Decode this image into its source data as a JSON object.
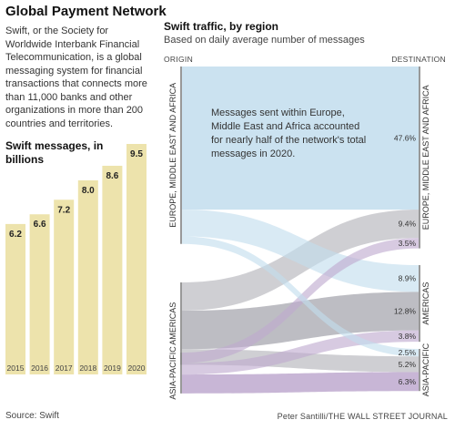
{
  "left": {
    "title": "Global Payment Network",
    "description": "Swift, or the Society for Worldwide Interbank Financial Telecommunication, is a global messaging system for financial transactions that connects more than 11,000 banks and other organizations in more than 200 countries and territories.",
    "source": "Source: Swift"
  },
  "right": {
    "title": "Swift traffic, by region",
    "subtitle": "Based on daily average number of messages",
    "annotation": "Messages sent within Europe, Middle East and Africa accounted for nearly half of the network's total messages in 2020.",
    "credit": "Peter Santilli/THE WALL STREET JOURNAL"
  },
  "colors": {
    "bar": "#ede3ac",
    "emea": "#c2dded",
    "americas": "#b1b2b8",
    "asia": "#bea9cf",
    "node": "#555555"
  },
  "chart_data": [
    {
      "type": "bar",
      "title": "Swift messages, in billions",
      "categories": [
        "2015",
        "2016",
        "2017",
        "2018",
        "2019",
        "2020"
      ],
      "values": [
        6.2,
        6.6,
        7.2,
        8.0,
        8.6,
        9.5
      ],
      "value_labels": [
        "6.2",
        "6.6",
        "7.2",
        "8.0",
        "8.6",
        "9.5"
      ],
      "ylim": [
        0,
        9.5
      ]
    },
    {
      "type": "sankey",
      "title": "Swift traffic, by region",
      "subtitle": "Based on daily average number of messages",
      "origin_header": "ORIGIN",
      "destination_header": "DESTINATION",
      "origins": [
        "EUROPE, MIDDLE EAST AND AFRICA",
        "AMERICAS",
        "ASIA-PACIFIC"
      ],
      "destinations": [
        "EUROPE, MIDDLE EAST AND AFRICA",
        "AMERICAS",
        "ASIA-PACIFIC"
      ],
      "flows": [
        {
          "from": "EUROPE, MIDDLE EAST AND AFRICA",
          "to": "EUROPE, MIDDLE EAST AND AFRICA",
          "percent": 47.6,
          "label": "47.6%"
        },
        {
          "from": "EUROPE, MIDDLE EAST AND AFRICA",
          "to": "AMERICAS",
          "percent": 8.9,
          "label": "8.9%"
        },
        {
          "from": "EUROPE, MIDDLE EAST AND AFRICA",
          "to": "ASIA-PACIFIC",
          "percent": 2.5,
          "label": "2.5%"
        },
        {
          "from": "AMERICAS",
          "to": "EUROPE, MIDDLE EAST AND AFRICA",
          "percent": 9.4,
          "label": "9.4%"
        },
        {
          "from": "AMERICAS",
          "to": "AMERICAS",
          "percent": 12.8,
          "label": "12.8%"
        },
        {
          "from": "AMERICAS",
          "to": "ASIA-PACIFIC",
          "percent": 5.2,
          "label": "5.2%"
        },
        {
          "from": "ASIA-PACIFIC",
          "to": "EUROPE, MIDDLE EAST AND AFRICA",
          "percent": 3.5,
          "label": "3.5%"
        },
        {
          "from": "ASIA-PACIFIC",
          "to": "AMERICAS",
          "percent": 3.8,
          "label": "3.8%"
        },
        {
          "from": "ASIA-PACIFIC",
          "to": "ASIA-PACIFIC",
          "percent": 6.3,
          "label": "6.3%"
        }
      ]
    }
  ]
}
